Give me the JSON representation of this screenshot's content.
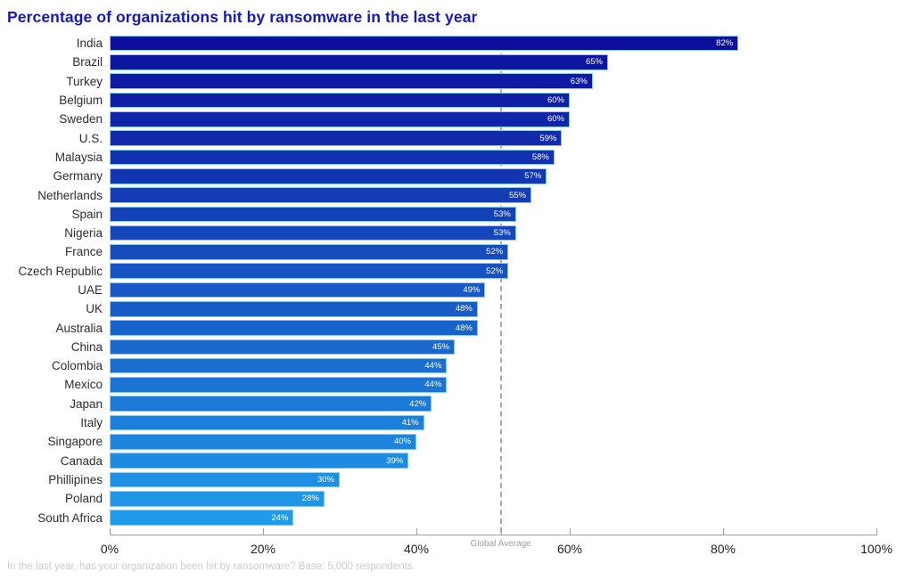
{
  "page": {
    "footnote": "In the last year, has your organization been hit by ransomware? Base: 5,000 respondents."
  },
  "chart_data": {
    "type": "bar",
    "orientation": "horizontal",
    "title": "Percentage of organizations hit by ransomware in the last year",
    "categories": [
      "India",
      "Brazil",
      "Turkey",
      "Belgium",
      "Sweden",
      "U.S.",
      "Malaysia",
      "Germany",
      "Netherlands",
      "Spain",
      "Nigeria",
      "France",
      "Czech Republic",
      "UAE",
      "UK",
      "Australia",
      "China",
      "Colombia",
      "Mexico",
      "Japan",
      "Italy",
      "Singapore",
      "Canada",
      "Phillipines",
      "Poland",
      "South Africa"
    ],
    "values": [
      82,
      65,
      63,
      60,
      60,
      59,
      58,
      57,
      55,
      53,
      53,
      52,
      52,
      49,
      48,
      48,
      45,
      44,
      44,
      42,
      41,
      40,
      39,
      30,
      28,
      24
    ],
    "unit": "%",
    "xlabel": "",
    "ylabel": "",
    "xlim": [
      0,
      100
    ],
    "x_tick_values": [
      0,
      20,
      40,
      60,
      80,
      100
    ],
    "x_tick_labels": [
      "0%",
      "20%",
      "40%",
      "60%",
      "80%",
      "100%"
    ],
    "grid": false,
    "legend": null,
    "annotations": [
      {
        "label": "Global Average",
        "value": 51,
        "style": "dashed-vertical-line"
      }
    ],
    "colors": {
      "title": "#1518be",
      "bar_gradient_start": "#0d0f9c",
      "bar_gradient_end": "#209be9",
      "bar_border": "#86cbf1",
      "value_label": "#ffffff",
      "axis": "#9aa0a6",
      "tick_label": "#1f1f1f",
      "annotation_line": "#a6abb1",
      "annotation_label": "#9aa2ab",
      "footnote": "#c7ced8"
    }
  }
}
